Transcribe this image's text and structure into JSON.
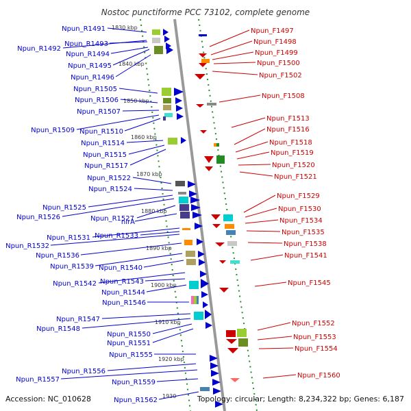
{
  "title": "Nostoc punctiforme PCC 73102, complete genome",
  "footer": {
    "accession": "Accession: NC_010628",
    "summary": "Topology: circular; Length: 8,234,322 bp; Genes: 6,187"
  },
  "colors": {
    "reverse": "#0000cc",
    "forward": "#cc0000",
    "backbone": "#999999",
    "ticks": "#228b22"
  },
  "kbp_ticks": [
    "1830 kbp",
    "1840 kbp",
    "1850 kbp",
    "1860 kbp",
    "1870 kbp",
    "1880 kbp",
    "1890 kbp",
    "1900 kbp",
    "1910 kbp",
    "1920 kbp",
    "1930"
  ],
  "left_labels": [
    "Npun_R1491",
    "Npun_R1492",
    "Npun_R1493",
    "Npun_R1494",
    "Npun_R1495",
    "Npun_R1496",
    "Npun_R1505",
    "Npun_R1506",
    "Npun_R1507",
    "Npun_R1509",
    "Npun_R1510",
    "Npun_R1514",
    "Npun_R1515",
    "Npun_R1517",
    "Npun_R1522",
    "Npun_R1524",
    "Npun_R1525",
    "Npun_R1526",
    "Npun_R1527",
    "nirA",
    "Npun_R1531",
    "Npun_R1533",
    "Npun_R1532",
    "Npun_R1536",
    "Npun_R1539",
    "Npun_R1540",
    "Npun_R1542",
    "Npun_R1543",
    "Npun_R1544",
    "Npun_R1546",
    "Npun_R1547",
    "Npun_R1548",
    "Npun_R1550",
    "Npun_R1551",
    "Npun_R1555",
    "Npun_R1556",
    "Npun_R1557",
    "Npun_R1559",
    "Npun_R1562"
  ],
  "right_labels": [
    "Npun_F1497",
    "Npun_F1498",
    "Npun_F1499",
    "Npun_F1500",
    "Npun_F1502",
    "Npun_F1508",
    "Npun_F1513",
    "Npun_F1516",
    "Npun_F1518",
    "Npun_F1519",
    "Npun_F1520",
    "Npun_F1521",
    "Npun_F1529",
    "Npun_F1530",
    "Npun_F1534",
    "Npun_F1535",
    "Npun_F1538",
    "Npun_F1541",
    "Npun_F1545",
    "Npun_F1552",
    "Npun_F1553",
    "Npun_F1554",
    "Npun_F1560"
  ],
  "gene_colors": [
    "#6b8e23",
    "#9acd32",
    "#c8c8c8",
    "#00ced1",
    "#483d8b",
    "#ff8c00",
    "#b0a060",
    "#40e0d0",
    "#228b22",
    "#4682b4"
  ]
}
